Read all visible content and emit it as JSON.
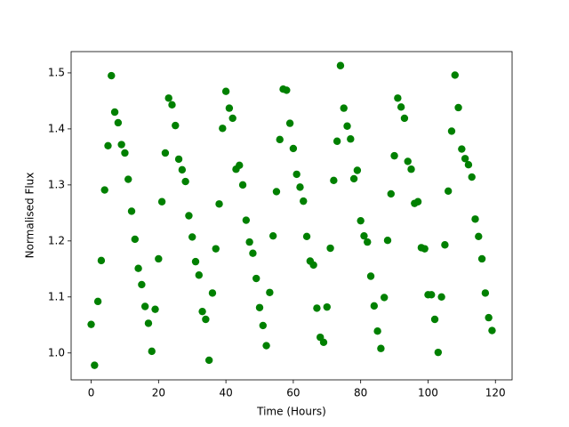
{
  "chart_data": {
    "type": "scatter",
    "xlabel": "Time (Hours)",
    "ylabel": "Normalised Flux",
    "x": [
      0,
      1,
      2,
      3,
      4,
      5,
      6,
      7,
      8,
      9,
      10,
      11,
      12,
      13,
      14,
      15,
      16,
      17,
      18,
      19,
      20,
      21,
      22,
      23,
      24,
      25,
      26,
      27,
      28,
      29,
      30,
      31,
      32,
      33,
      34,
      35,
      36,
      37,
      38,
      39,
      40,
      41,
      42,
      43,
      44,
      45,
      46,
      47,
      48,
      49,
      50,
      51,
      52,
      53,
      54,
      55,
      56,
      57,
      58,
      59,
      60,
      61,
      62,
      63,
      64,
      65,
      66,
      67,
      68,
      69,
      70,
      71,
      72,
      73,
      74,
      75,
      76,
      77,
      78,
      79,
      80,
      81,
      82,
      83,
      84,
      85,
      86,
      87,
      88,
      89,
      90,
      91,
      92,
      93,
      94,
      95,
      96,
      97,
      98,
      99,
      100,
      101,
      102,
      103,
      104,
      105,
      106,
      107,
      108,
      109,
      110,
      111,
      112,
      113,
      114,
      115,
      116,
      117,
      118,
      119
    ],
    "values": [
      1.051,
      0.978,
      1.092,
      1.165,
      1.291,
      1.37,
      1.495,
      1.43,
      1.411,
      1.372,
      1.357,
      1.31,
      1.253,
      1.203,
      1.151,
      1.122,
      1.083,
      1.053,
      1.003,
      1.078,
      1.168,
      1.27,
      1.357,
      1.455,
      1.443,
      1.406,
      1.346,
      1.327,
      1.306,
      1.245,
      1.207,
      1.163,
      1.139,
      1.074,
      1.06,
      0.987,
      1.107,
      1.186,
      1.266,
      1.401,
      1.467,
      1.437,
      1.419,
      1.328,
      1.335,
      1.3,
      1.237,
      1.198,
      1.178,
      1.133,
      1.081,
      1.049,
      1.013,
      1.108,
      1.209,
      1.288,
      1.381,
      1.471,
      1.469,
      1.41,
      1.365,
      1.319,
      1.296,
      1.271,
      1.208,
      1.164,
      1.157,
      1.08,
      1.028,
      1.019,
      1.082,
      1.187,
      1.308,
      1.378,
      1.513,
      1.437,
      1.405,
      1.382,
      1.311,
      1.326,
      1.236,
      1.209,
      1.198,
      1.137,
      1.084,
      1.039,
      1.008,
      1.099,
      1.201,
      1.284,
      1.352,
      1.455,
      1.439,
      1.419,
      1.342,
      1.328,
      1.267,
      1.27,
      1.188,
      1.186,
      1.104,
      1.104,
      1.06,
      1.001,
      1.1,
      1.193,
      1.289,
      1.396,
      1.496,
      1.438,
      1.364,
      1.347,
      1.336,
      1.314,
      1.239,
      1.208,
      1.168,
      1.107,
      1.063,
      1.04
    ],
    "color": "#008000",
    "xlim": [
      -5.95,
      124.95
    ],
    "xticks": [
      0,
      20,
      40,
      60,
      80,
      100,
      120
    ],
    "ylim": [
      0.952,
      1.538
    ],
    "yticks": [
      {
        "value": 1.0,
        "label": "1.0"
      },
      1.1,
      1.2,
      1.3,
      1.4,
      1.5
    ]
  }
}
